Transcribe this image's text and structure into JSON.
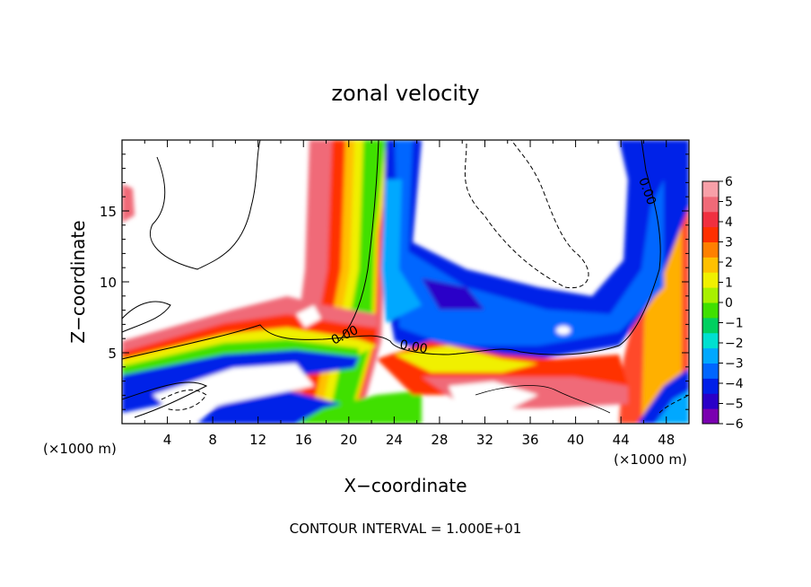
{
  "chart_data": {
    "type": "heatmap",
    "title": "zonal velocity",
    "xlabel": "X−coordinate",
    "ylabel": "Z−coordinate",
    "x_unit_left": "(×1000 m)",
    "x_unit_right": "(×1000 m)",
    "footer": "CONTOUR INTERVAL = 1.000E+01",
    "xlim": [
      0,
      50
    ],
    "ylim": [
      0,
      20
    ],
    "x_ticks": [
      4,
      8,
      12,
      16,
      20,
      24,
      28,
      32,
      36,
      40,
      44,
      48
    ],
    "y_ticks": [
      5,
      10,
      15
    ],
    "colorbar": {
      "range": [
        -6,
        6
      ],
      "tick_labels": [
        "6",
        "5",
        "4",
        "3",
        "2",
        "1",
        "0",
        "−1",
        "−2",
        "−3",
        "−4",
        "−5",
        "−6"
      ],
      "colors": [
        "#7a00b0",
        "#2a00c8",
        "#0020e8",
        "#0066ff",
        "#00a8ff",
        "#00e0d0",
        "#00d060",
        "#40e000",
        "#a8f000",
        "#f0f000",
        "#ffc000",
        "#ff8000",
        "#ff3000",
        "#f03040",
        "#f06a78",
        "#f8a0a8"
      ]
    },
    "contour_labels": [
      "0.00",
      "0.00",
      "0.00"
    ]
  }
}
